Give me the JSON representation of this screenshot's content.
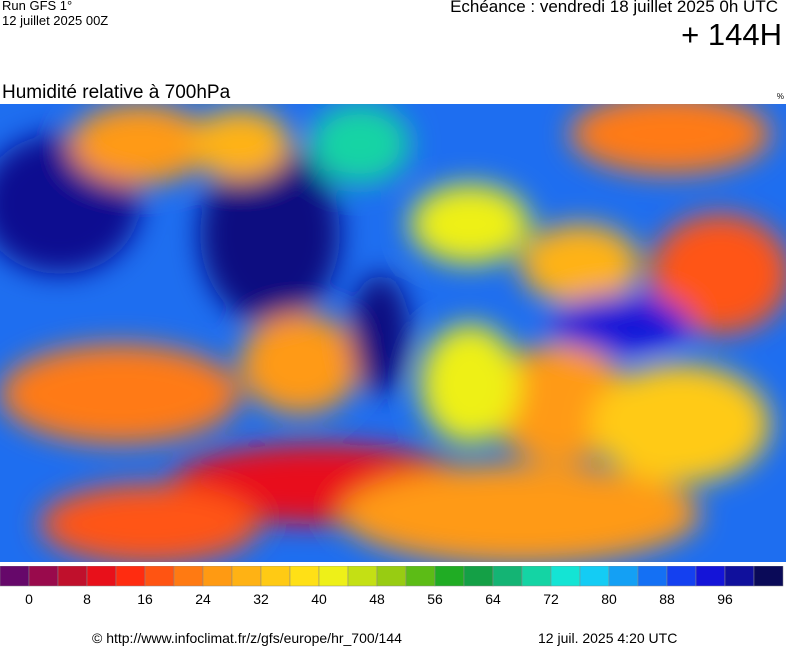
{
  "header": {
    "run": "Run GFS 1°",
    "run_date": "12 juillet 2025 00Z",
    "echeance": "Echéance : vendredi 18 juillet 2025 0h UTC",
    "lead": "+ 144H"
  },
  "map": {
    "title": "Humidité relative à 700hPa",
    "unit": "%"
  },
  "colorbar": {
    "colors": [
      "#66086a",
      "#990a4c",
      "#c0102c",
      "#e8101a",
      "#ff2c10",
      "#ff5412",
      "#ff7a12",
      "#ff9a12",
      "#ffb214",
      "#ffca14",
      "#ffe016",
      "#eef018",
      "#c4e014",
      "#98cc12",
      "#5cbc16",
      "#20ac24",
      "#14a046",
      "#14b474",
      "#14d4a4",
      "#14e4d4",
      "#14ccf4",
      "#14a0f4",
      "#1470f4",
      "#1440f0",
      "#1414d8",
      "#10109c",
      "#0a0a58"
    ],
    "ticks": [
      0,
      8,
      16,
      24,
      32,
      40,
      48,
      56,
      64,
      72,
      80,
      88,
      96
    ]
  },
  "footer": {
    "url": "© http://www.infoclimat.fr/z/gfs/europe/hr_700/144",
    "generated": "12 juil. 2025  4:20 UTC"
  }
}
